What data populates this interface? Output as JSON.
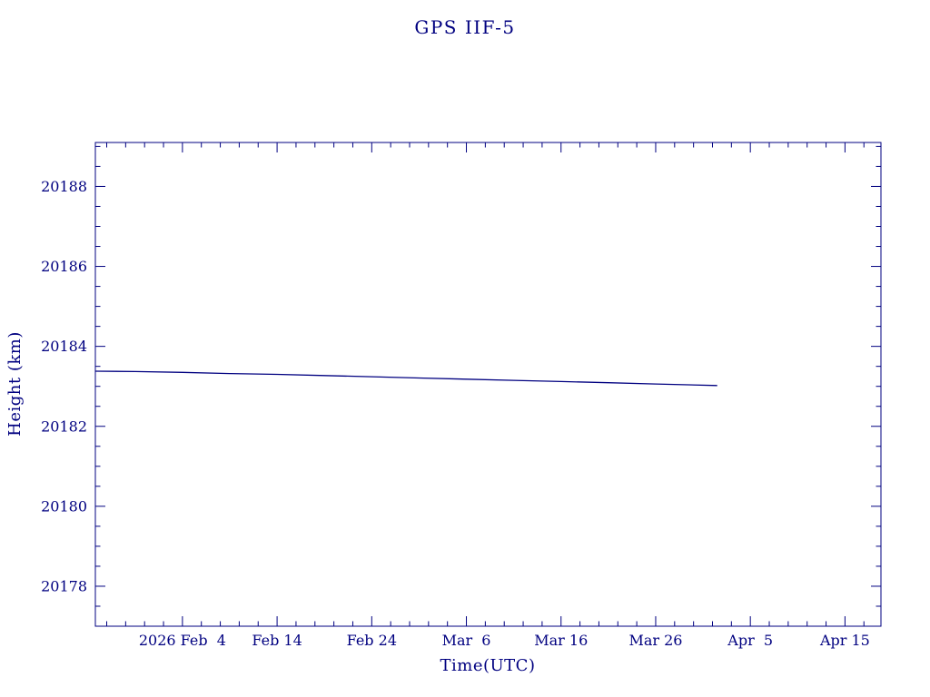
{
  "page": {
    "background": "#ffffff",
    "foreground": "#000080"
  },
  "chart_data": {
    "type": "line",
    "title": "GPS IIF-5",
    "xlabel": "Time(UTC)",
    "ylabel": "Height (km)",
    "axis_color": "#000080",
    "line_color": "#000080",
    "grid": false,
    "legend": null,
    "x_unit": "days since 2026 Feb 4 00:00 UTC",
    "xlim_days": [
      -9.2,
      73.8
    ],
    "x_ticks": [
      {
        "day": 0,
        "label": "2026 Feb  4"
      },
      {
        "day": 10,
        "label": "Feb 14"
      },
      {
        "day": 20,
        "label": "Feb 24"
      },
      {
        "day": 30,
        "label": "Mar  6"
      },
      {
        "day": 40,
        "label": "Mar 16"
      },
      {
        "day": 50,
        "label": "Mar 26"
      },
      {
        "day": 60,
        "label": "Apr  5"
      },
      {
        "day": 70,
        "label": "Apr 15"
      }
    ],
    "x_minor_step_days": 2,
    "ylim": [
      20177.0,
      20189.1
    ],
    "y_ticks": [
      20178,
      20180,
      20182,
      20184,
      20186,
      20188
    ],
    "y_minor_step": 0.5,
    "series": [
      {
        "name": "GPS IIF-5 height",
        "points_day_km": [
          [
            -9.2,
            20183.38
          ],
          [
            -5.0,
            20183.37
          ],
          [
            0.0,
            20183.35
          ],
          [
            5.0,
            20183.32
          ],
          [
            10.0,
            20183.3
          ],
          [
            15.0,
            20183.27
          ],
          [
            20.0,
            20183.24
          ],
          [
            25.0,
            20183.21
          ],
          [
            30.0,
            20183.18
          ],
          [
            35.0,
            20183.15
          ],
          [
            40.0,
            20183.12
          ],
          [
            45.0,
            20183.09
          ],
          [
            50.0,
            20183.06
          ],
          [
            56.5,
            20183.02
          ]
        ]
      }
    ]
  }
}
